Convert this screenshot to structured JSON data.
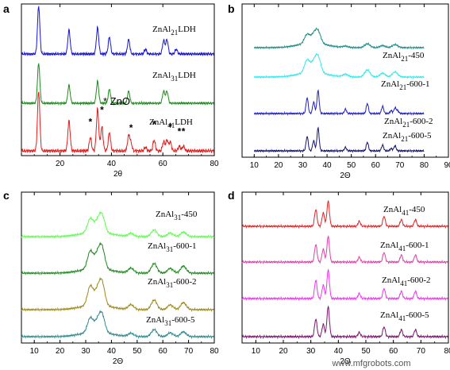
{
  "chart_data": [
    {
      "panel": "a",
      "type": "line",
      "xlabel": "2θ",
      "xlim": [
        5,
        80
      ],
      "x_ticks": [
        "20",
        "40",
        "60",
        "80"
      ],
      "annotation": "* ZnO",
      "series": [
        {
          "name": "ZnAl21LDH",
          "label_base": "ZnAl",
          "label_sub": "21",
          "label_tail": "LDH",
          "color": "#1414d2",
          "peaks": [
            [
              11.7,
              1.0
            ],
            [
              23.5,
              0.5
            ],
            [
              34.6,
              0.55
            ],
            [
              39.2,
              0.35
            ],
            [
              46.7,
              0.3
            ],
            [
              53.2,
              0.1
            ],
            [
              60.3,
              0.28
            ],
            [
              61.6,
              0.3
            ],
            [
              65.2,
              0.1
            ]
          ]
        },
        {
          "name": "ZnAl31LDH",
          "label_base": "ZnAl",
          "label_sub": "31",
          "label_tail": "LDH",
          "color": "#1c8a1c",
          "peaks": [
            [
              11.7,
              1.0
            ],
            [
              23.5,
              0.45
            ],
            [
              34.6,
              0.55
            ],
            [
              39.2,
              0.35
            ],
            [
              46.7,
              0.3
            ],
            [
              60.3,
              0.3
            ],
            [
              61.6,
              0.3
            ]
          ]
        },
        {
          "name": "ZnAl41LDH",
          "label_base": "ZnAl",
          "label_sub": "41",
          "label_tail": "LDH",
          "color": "#e51a1a",
          "peaks": [
            [
              11.7,
              1.0
            ],
            [
              23.5,
              0.5
            ],
            [
              31.8,
              0.22
            ],
            [
              34.6,
              0.7
            ],
            [
              36.3,
              0.4
            ],
            [
              39.2,
              0.3
            ],
            [
              46.7,
              0.25
            ],
            [
              47.6,
              0.12
            ],
            [
              53.2,
              0.06
            ],
            [
              56.6,
              0.18
            ],
            [
              60.3,
              0.15
            ],
            [
              61.6,
              0.18
            ],
            [
              62.9,
              0.15
            ],
            [
              66.4,
              0.08
            ],
            [
              68.0,
              0.08
            ]
          ]
        }
      ]
    },
    {
      "panel": "b",
      "type": "line",
      "xlabel": "2Θ",
      "xlim": [
        5,
        90
      ],
      "x_ticks": [
        "10",
        "20",
        "30",
        "40",
        "50",
        "60",
        "70",
        "80",
        "90"
      ],
      "series": [
        {
          "name": "ZnAl21-450",
          "label_base": "ZnAl",
          "label_sub": "21",
          "label_tail": "-450",
          "color": "#1e8c86",
          "peaks": [
            [
              31.8,
              0.35
            ],
            [
              34.5,
              0.3
            ],
            [
              36.3,
              0.45
            ],
            [
              47.6,
              0.05
            ],
            [
              56.6,
              0.15
            ],
            [
              62.9,
              0.08
            ],
            [
              68.0,
              0.12
            ]
          ],
          "broad": true
        },
        {
          "name": "ZnAl21-600-1",
          "label_base": "ZnAl",
          "label_sub": "21",
          "label_tail": "-600-1",
          "color": "#33e8ee",
          "peaks": [
            [
              31.8,
              0.5
            ],
            [
              34.5,
              0.35
            ],
            [
              36.3,
              0.6
            ],
            [
              47.6,
              0.1
            ],
            [
              56.6,
              0.28
            ],
            [
              62.9,
              0.15
            ],
            [
              68.0,
              0.2
            ]
          ],
          "broad": true
        },
        {
          "name": "ZnAl21-600-2",
          "label_base": "ZnAl",
          "label_sub": "21",
          "label_tail": "-600-2",
          "color": "#1f1fc0",
          "peaks": [
            [
              31.8,
              0.55
            ],
            [
              34.5,
              0.4
            ],
            [
              36.3,
              0.8
            ],
            [
              47.6,
              0.15
            ],
            [
              56.6,
              0.35
            ],
            [
              62.9,
              0.25
            ],
            [
              66.4,
              0.1
            ],
            [
              68.0,
              0.2
            ],
            [
              69.1,
              0.1
            ]
          ]
        },
        {
          "name": "ZnAl21-600-5",
          "label_base": "ZnAl",
          "label_sub": "21",
          "label_tail": "-600-5",
          "color": "#141470",
          "peaks": [
            [
              31.8,
              0.5
            ],
            [
              34.5,
              0.35
            ],
            [
              36.3,
              0.8
            ],
            [
              47.6,
              0.12
            ],
            [
              56.6,
              0.3
            ],
            [
              62.9,
              0.2
            ],
            [
              66.4,
              0.08
            ],
            [
              68.0,
              0.18
            ]
          ]
        }
      ]
    },
    {
      "panel": "c",
      "type": "line",
      "xlabel": "2Θ",
      "xlim": [
        5,
        80
      ],
      "x_ticks": [
        "10",
        "20",
        "30",
        "40",
        "50",
        "60",
        "70",
        "80"
      ],
      "series": [
        {
          "name": "ZnAl31-450",
          "label_base": "ZnAl",
          "label_sub": "31",
          "label_tail": "-450",
          "color": "#5cff4c",
          "peaks": [
            [
              31.8,
              0.45
            ],
            [
              34.5,
              0.3
            ],
            [
              36.3,
              0.55
            ],
            [
              47.6,
              0.1
            ],
            [
              56.6,
              0.22
            ],
            [
              62.9,
              0.12
            ],
            [
              68.0,
              0.15
            ]
          ],
          "broad": true
        },
        {
          "name": "ZnAl31-600-1",
          "label_base": "ZnAl",
          "label_sub": "31",
          "label_tail": "-600-1",
          "color": "#1f8a1f",
          "peaks": [
            [
              31.8,
              0.55
            ],
            [
              34.5,
              0.4
            ],
            [
              36.3,
              0.65
            ],
            [
              47.6,
              0.15
            ],
            [
              56.6,
              0.3
            ],
            [
              62.9,
              0.15
            ],
            [
              68.0,
              0.22
            ]
          ],
          "broad": true
        },
        {
          "name": "ZnAl31-600-2",
          "label_base": "ZnAl",
          "label_sub": "31",
          "label_tail": "-600-2",
          "color": "#9e8a1c",
          "peaks": [
            [
              31.8,
              0.6
            ],
            [
              34.5,
              0.4
            ],
            [
              36.3,
              0.7
            ],
            [
              47.6,
              0.15
            ],
            [
              56.6,
              0.3
            ],
            [
              62.9,
              0.15
            ],
            [
              68.0,
              0.22
            ]
          ],
          "broad": true
        },
        {
          "name": "ZnAl31-600-5",
          "label_base": "ZnAl",
          "label_sub": "31",
          "label_tail": "-600-5",
          "color": "#2e8a8e",
          "peaks": [
            [
              31.8,
              0.45
            ],
            [
              34.5,
              0.3
            ],
            [
              36.3,
              0.55
            ],
            [
              47.6,
              0.1
            ],
            [
              56.6,
              0.22
            ],
            [
              62.9,
              0.12
            ],
            [
              68.0,
              0.15
            ]
          ],
          "broad": true
        }
      ]
    },
    {
      "panel": "d",
      "type": "line",
      "xlabel": "2Θ",
      "xlim": [
        5,
        80
      ],
      "x_ticks": [
        "10",
        "20",
        "30",
        "40",
        "50",
        "60",
        "70",
        "80"
      ],
      "series": [
        {
          "name": "ZnAl41-450",
          "label_base": "ZnAl",
          "label_sub": "41",
          "label_tail": "-450",
          "color": "#e02424",
          "peaks": [
            [
              31.8,
              0.5
            ],
            [
              34.5,
              0.4
            ],
            [
              36.3,
              0.75
            ],
            [
              47.6,
              0.15
            ],
            [
              56.6,
              0.3
            ],
            [
              62.9,
              0.2
            ],
            [
              68.0,
              0.2
            ]
          ]
        },
        {
          "name": "ZnAl41-600-1",
          "label_base": "ZnAl",
          "label_sub": "41",
          "label_tail": "-600-1",
          "color": "#e03fa8",
          "peaks": [
            [
              31.8,
              0.55
            ],
            [
              34.5,
              0.4
            ],
            [
              36.3,
              0.8
            ],
            [
              47.6,
              0.15
            ],
            [
              56.6,
              0.3
            ],
            [
              62.9,
              0.22
            ],
            [
              68.0,
              0.22
            ]
          ]
        },
        {
          "name": "ZnAl41-600-2",
          "label_base": "ZnAl",
          "label_sub": "41",
          "label_tail": "-600-2",
          "color": "#ee33ee",
          "peaks": [
            [
              31.8,
              0.55
            ],
            [
              34.5,
              0.4
            ],
            [
              36.3,
              0.85
            ],
            [
              47.6,
              0.15
            ],
            [
              56.6,
              0.3
            ],
            [
              62.9,
              0.22
            ],
            [
              68.0,
              0.22
            ]
          ]
        },
        {
          "name": "ZnAl41-600-5",
          "label_base": "ZnAl",
          "label_sub": "41",
          "label_tail": "-600-5",
          "color": "#7a1470",
          "peaks": [
            [
              31.8,
              0.5
            ],
            [
              34.5,
              0.35
            ],
            [
              36.3,
              0.85
            ],
            [
              47.6,
              0.12
            ],
            [
              56.6,
              0.28
            ],
            [
              62.9,
              0.2
            ],
            [
              68.0,
              0.2
            ]
          ]
        }
      ]
    }
  ],
  "watermark": "www.mfgrobots.com"
}
